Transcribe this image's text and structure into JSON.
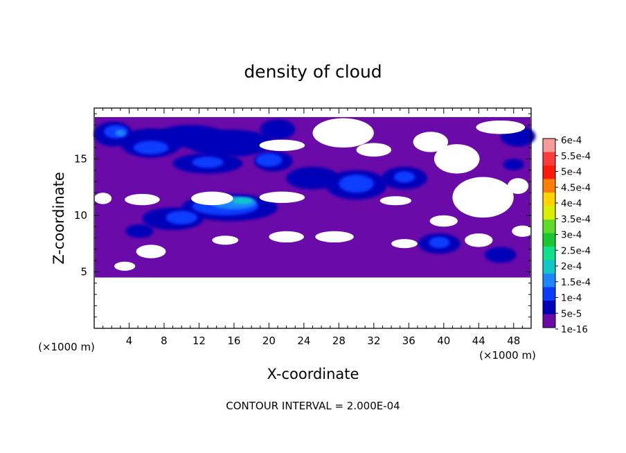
{
  "chart_data": {
    "type": "heatmap",
    "title": "density of cloud",
    "xlabel": "X-coordinate",
    "ylabel": "Z-coordinate",
    "x_unit": "(×1000 m)",
    "footer": "CONTOUR INTERVAL = 2.000E-04",
    "xlim": [
      0,
      50
    ],
    "ylim": [
      0,
      19.5
    ],
    "x_ticks": [
      4,
      8,
      12,
      16,
      20,
      24,
      28,
      32,
      36,
      40,
      44,
      48
    ],
    "y_ticks": [
      5,
      10,
      15
    ],
    "colorbar": {
      "labels": [
        "6e-4",
        "5.5e-4",
        "5e-4",
        "4.5e-4",
        "4e-4",
        "3.5e-4",
        "3e-4",
        "2.5e-4",
        "2e-4",
        "1.5e-4",
        "1e-4",
        "5e-5",
        "1e-16"
      ],
      "colors": [
        "#f79a9a",
        "#ff3a3a",
        "#ff1a0a",
        "#ff8000",
        "#ffd200",
        "#d8f000",
        "#5fdc2a",
        "#19c830",
        "#12e08a",
        "#10c8c8",
        "#1c86ff",
        "#0a3cff",
        "#0000b8",
        "#6a0aa8"
      ]
    },
    "cloud_layer": {
      "z_bottom": 4.5,
      "z_top": 18.7
    },
    "regions": [
      {
        "level": 1,
        "x": 2.2,
        "z": 17.2,
        "rx": 2.2,
        "rz": 1.1
      },
      {
        "level": 1,
        "x": 6.5,
        "z": 16.4,
        "rx": 3.5,
        "rz": 1.3
      },
      {
        "level": 1,
        "x": 11.0,
        "z": 17.0,
        "rx": 4.0,
        "rz": 1.0
      },
      {
        "level": 1,
        "x": 15.5,
        "z": 16.4,
        "rx": 5.0,
        "rz": 1.2
      },
      {
        "level": 1,
        "x": 21.0,
        "z": 17.6,
        "rx": 2.0,
        "rz": 0.9
      },
      {
        "level": 1,
        "x": 13.0,
        "z": 14.6,
        "rx": 4.0,
        "rz": 0.9
      },
      {
        "level": 1,
        "x": 20.5,
        "z": 14.8,
        "rx": 2.2,
        "rz": 0.9
      },
      {
        "level": 1,
        "x": 25.0,
        "z": 13.3,
        "rx": 3.0,
        "rz": 1.0
      },
      {
        "level": 1,
        "x": 30.0,
        "z": 12.7,
        "rx": 3.5,
        "rz": 1.3
      },
      {
        "level": 1,
        "x": 35.5,
        "z": 13.3,
        "rx": 2.6,
        "rz": 1.0
      },
      {
        "level": 1,
        "x": 9.0,
        "z": 9.7,
        "rx": 3.5,
        "rz": 1.0
      },
      {
        "level": 1,
        "x": 15.5,
        "z": 10.7,
        "rx": 5.5,
        "rz": 1.2
      },
      {
        "level": 1,
        "x": 5.2,
        "z": 8.6,
        "rx": 1.6,
        "rz": 0.6
      },
      {
        "level": 1,
        "x": 39.5,
        "z": 7.5,
        "rx": 2.4,
        "rz": 0.9
      },
      {
        "level": 1,
        "x": 46.5,
        "z": 6.5,
        "rx": 1.8,
        "rz": 0.7
      },
      {
        "level": 1,
        "x": 48.5,
        "z": 17.0,
        "rx": 2.0,
        "rz": 0.9
      },
      {
        "level": 1,
        "x": 48.0,
        "z": 14.5,
        "rx": 1.2,
        "rz": 0.5
      },
      {
        "level": 2,
        "x": 2.5,
        "z": 17.4,
        "rx": 1.4,
        "rz": 0.6
      },
      {
        "level": 2,
        "x": 6.5,
        "z": 16.0,
        "rx": 2.0,
        "rz": 0.6
      },
      {
        "level": 2,
        "x": 13.0,
        "z": 14.7,
        "rx": 1.8,
        "rz": 0.5
      },
      {
        "level": 2,
        "x": 20.0,
        "z": 14.9,
        "rx": 1.5,
        "rz": 0.6
      },
      {
        "level": 2,
        "x": 30.0,
        "z": 12.8,
        "rx": 2.0,
        "rz": 0.8
      },
      {
        "level": 2,
        "x": 15.0,
        "z": 10.8,
        "rx": 3.8,
        "rz": 0.8
      },
      {
        "level": 2,
        "x": 10.0,
        "z": 9.8,
        "rx": 1.8,
        "rz": 0.6
      },
      {
        "level": 2,
        "x": 39.5,
        "z": 7.6,
        "rx": 1.2,
        "rz": 0.5
      },
      {
        "level": 2,
        "x": 35.5,
        "z": 13.4,
        "rx": 1.2,
        "rz": 0.5
      },
      {
        "level": 3,
        "x": 16.0,
        "z": 11.1,
        "rx": 2.6,
        "rz": 0.55
      },
      {
        "level": 3,
        "x": 3.0,
        "z": 17.3,
        "rx": 0.6,
        "rz": 0.3
      },
      {
        "level": 4,
        "x": 17.0,
        "z": 11.3,
        "rx": 1.2,
        "rz": 0.3
      }
    ],
    "gaps": [
      {
        "x": 21.5,
        "z": 16.2,
        "rx": 2.6,
        "rz": 0.5
      },
      {
        "x": 28.5,
        "z": 17.3,
        "rx": 3.5,
        "rz": 1.3
      },
      {
        "x": 32.0,
        "z": 15.8,
        "rx": 2.0,
        "rz": 0.6
      },
      {
        "x": 38.5,
        "z": 16.5,
        "rx": 2.0,
        "rz": 0.9
      },
      {
        "x": 41.5,
        "z": 15.0,
        "rx": 2.6,
        "rz": 1.3
      },
      {
        "x": 44.5,
        "z": 11.6,
        "rx": 3.5,
        "rz": 1.8
      },
      {
        "x": 48.5,
        "z": 12.6,
        "rx": 1.2,
        "rz": 0.7
      },
      {
        "x": 46.5,
        "z": 17.8,
        "rx": 2.8,
        "rz": 0.6
      },
      {
        "x": 5.5,
        "z": 11.4,
        "rx": 2.0,
        "rz": 0.5
      },
      {
        "x": 13.5,
        "z": 11.5,
        "rx": 2.4,
        "rz": 0.6
      },
      {
        "x": 21.5,
        "z": 11.6,
        "rx": 2.6,
        "rz": 0.5
      },
      {
        "x": 1.0,
        "z": 11.5,
        "rx": 1.0,
        "rz": 0.5
      },
      {
        "x": 34.5,
        "z": 11.3,
        "rx": 1.8,
        "rz": 0.4
      },
      {
        "x": 6.5,
        "z": 6.8,
        "rx": 1.7,
        "rz": 0.6
      },
      {
        "x": 3.5,
        "z": 5.5,
        "rx": 1.2,
        "rz": 0.4
      },
      {
        "x": 15.0,
        "z": 7.8,
        "rx": 1.5,
        "rz": 0.4
      },
      {
        "x": 22.0,
        "z": 8.1,
        "rx": 2.0,
        "rz": 0.5
      },
      {
        "x": 27.5,
        "z": 8.1,
        "rx": 2.2,
        "rz": 0.5
      },
      {
        "x": 35.5,
        "z": 7.5,
        "rx": 1.5,
        "rz": 0.4
      },
      {
        "x": 44.0,
        "z": 7.8,
        "rx": 1.6,
        "rz": 0.6
      },
      {
        "x": 49.0,
        "z": 8.6,
        "rx": 1.2,
        "rz": 0.5
      },
      {
        "x": 40.0,
        "z": 9.5,
        "rx": 1.6,
        "rz": 0.5
      }
    ]
  }
}
